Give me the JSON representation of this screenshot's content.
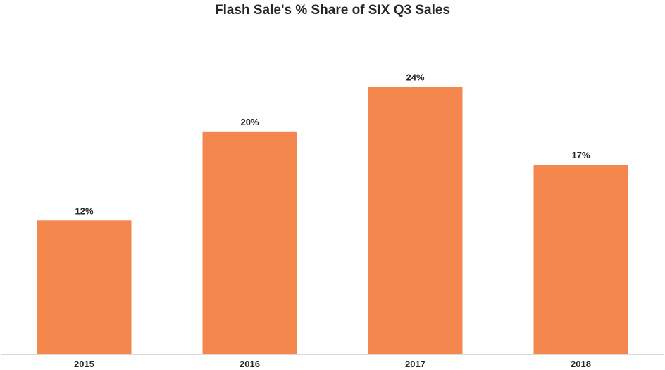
{
  "chart_data": {
    "type": "bar",
    "title": "Flash Sale's % Share of SIX Q3 Sales",
    "categories": [
      "2015",
      "2016",
      "2017",
      "2018"
    ],
    "values": [
      12,
      20,
      24,
      17
    ],
    "data_labels": [
      "12%",
      "20%",
      "24%",
      "17%"
    ],
    "xlabel": "",
    "ylabel": "",
    "ylim": [
      0,
      25.3
    ],
    "grid": false,
    "legend": "none",
    "bar_color": "#F4874E",
    "axis_color": "#D9D9D9"
  }
}
